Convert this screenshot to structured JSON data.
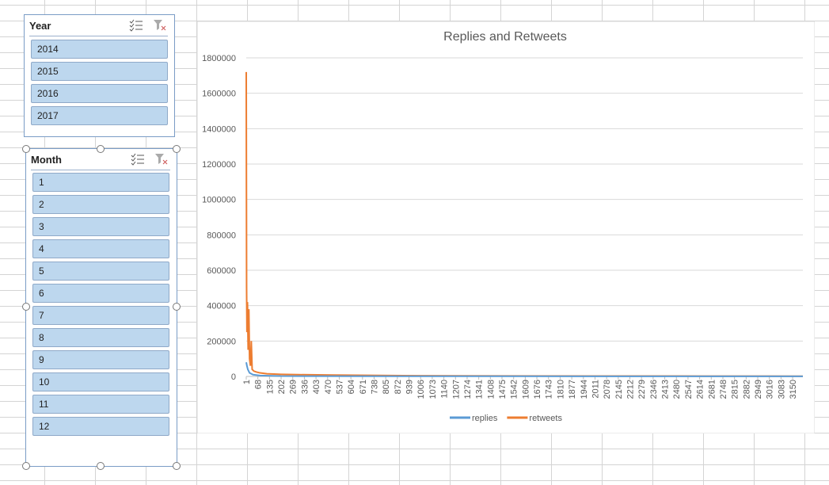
{
  "slicers": [
    {
      "title": "Year",
      "items": [
        "2014",
        "2015",
        "2016",
        "2017"
      ]
    },
    {
      "title": "Month",
      "items": [
        "1",
        "2",
        "3",
        "4",
        "5",
        "6",
        "7",
        "8",
        "9",
        "10",
        "11",
        "12"
      ]
    }
  ],
  "chart_data": {
    "type": "line",
    "title": "Replies and Retweets",
    "xlim": [
      1,
      3209
    ],
    "xticks": [
      1,
      68,
      135,
      202,
      269,
      336,
      403,
      470,
      537,
      604,
      671,
      738,
      805,
      872,
      939,
      1006,
      1073,
      1140,
      1207,
      1274,
      1341,
      1408,
      1475,
      1542,
      1609,
      1676,
      1743,
      1810,
      1877,
      1944,
      2011,
      2078,
      2145,
      2212,
      2279,
      2346,
      2413,
      2480,
      2547,
      2614,
      2681,
      2748,
      2815,
      2882,
      2949,
      3016,
      3083,
      3150
    ],
    "ylim": [
      0,
      1800000
    ],
    "yticks": [
      0,
      200000,
      400000,
      600000,
      800000,
      1000000,
      1200000,
      1400000,
      1600000,
      1800000
    ],
    "grid": true,
    "legend": "bottom",
    "series": [
      {
        "name": "replies",
        "color": "#5b9bd5",
        "x": [
          1,
          5,
          10,
          20,
          40,
          80,
          200,
          1000,
          3209
        ],
        "values": [
          80000,
          60000,
          40000,
          20000,
          10000,
          5000,
          2000,
          1000,
          500
        ]
      },
      {
        "name": "retweets",
        "color": "#ed7d31",
        "x": [
          1,
          3,
          5,
          8,
          12,
          16,
          20,
          25,
          30,
          35,
          45,
          60,
          80,
          120,
          200,
          300,
          500,
          700,
          1000,
          1500,
          2000,
          2500,
          3000,
          3209
        ],
        "values": [
          1720000,
          500000,
          250000,
          420000,
          150000,
          380000,
          100000,
          60000,
          200000,
          40000,
          30000,
          25000,
          20000,
          15000,
          12000,
          10000,
          8000,
          6000,
          4000,
          3000,
          2500,
          2000,
          1500,
          1000
        ]
      }
    ]
  }
}
